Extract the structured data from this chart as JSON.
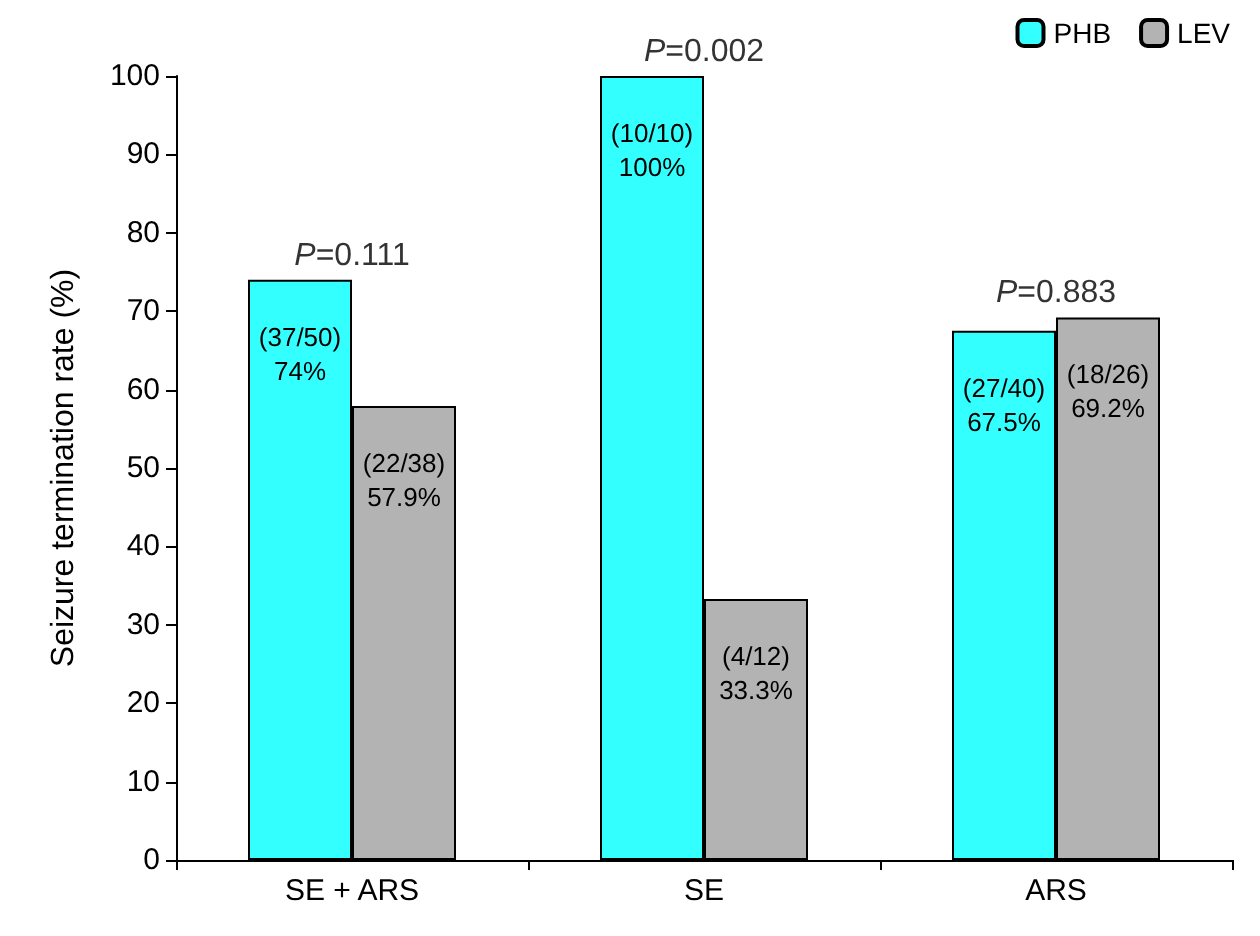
{
  "chart_data": {
    "type": "bar",
    "ylabel": "Seizure termination rate (%)",
    "categories": [
      "SE + ARS",
      "SE",
      "ARS"
    ],
    "series": [
      {
        "name": "PHB",
        "color": "#33ffff",
        "values": [
          74,
          100,
          67.5
        ],
        "value_labels": [
          "(37/50)\n74%",
          "(10/10)\n100%",
          "(27/40)\n67.5%"
        ]
      },
      {
        "name": "LEV",
        "color": "#b3b3b3",
        "values": [
          57.9,
          33.3,
          69.2
        ],
        "value_labels": [
          "(22/38)\n57.9%",
          "(4/12)\n33.3%",
          "(18/26)\n69.2%"
        ]
      }
    ],
    "annotations": [
      "P=0.111",
      "P=0.002",
      "P=0.883"
    ],
    "ylim": [
      0,
      100
    ],
    "yticks": [
      0,
      10,
      20,
      30,
      40,
      50,
      60,
      70,
      80,
      90,
      100
    ],
    "grid": false,
    "legend": "top right"
  }
}
